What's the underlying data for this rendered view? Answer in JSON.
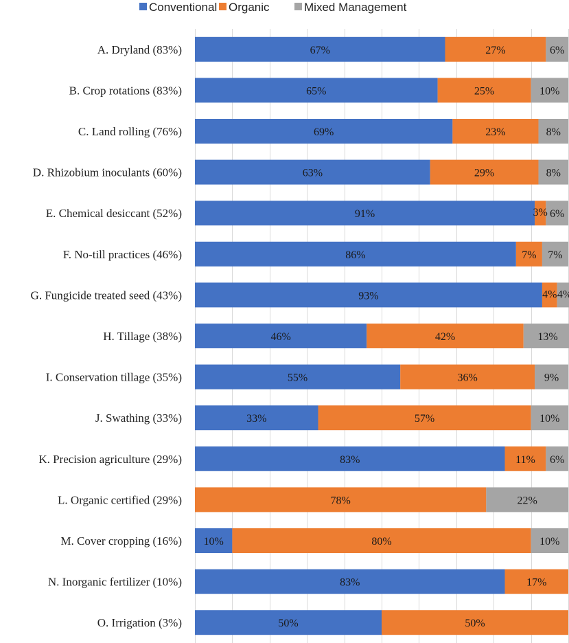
{
  "chart_data": {
    "type": "bar",
    "orientation": "horizontal",
    "stacked": "percent",
    "title": "",
    "xlabel": "",
    "ylabel": "",
    "xlim": [
      0,
      100
    ],
    "grid": true,
    "legend_position": "top",
    "categories": [
      "A. Dryland (83%)",
      "B. Crop rotations (83%)",
      "C. Land rolling (76%)",
      "D. Rhizobium inoculants (60%)",
      "E. Chemical desiccant (52%)",
      "F. No-till practices (46%)",
      "G. Fungicide treated seed (43%)",
      "H. Tillage (38%)",
      "I. Conservation tillage (35%)",
      "J. Swathing (33%)",
      "K. Precision agriculture (29%)",
      "L. Organic certified (29%)",
      "M. Cover cropping (16%)",
      "N. Inorganic fertilizer (10%)",
      "O. Irrigation (3%)"
    ],
    "series": [
      {
        "name": "Conventional",
        "color": "#4472C4",
        "values": [
          67,
          65,
          69,
          63,
          91,
          86,
          93,
          46,
          55,
          33,
          83,
          0,
          10,
          83,
          50
        ],
        "labels": [
          "67%",
          "65%",
          "69%",
          "63%",
          "91%",
          "86%",
          "93%",
          "46%",
          "55%",
          "33%",
          "83%",
          "",
          "10%",
          "83%",
          "50%"
        ]
      },
      {
        "name": "Organic",
        "color": "#ED7D31",
        "values": [
          27,
          25,
          23,
          29,
          3,
          7,
          4,
          42,
          36,
          57,
          11,
          78,
          80,
          17,
          50
        ],
        "labels": [
          "27%",
          "25%",
          "23%",
          "29%",
          "3%",
          "7%",
          "4%",
          "42%",
          "36%",
          "57%",
          "11%",
          "78%",
          "80%",
          "17%",
          "50%"
        ]
      },
      {
        "name": "Mixed Management",
        "color": "#A5A5A5",
        "values": [
          6,
          10,
          8,
          8,
          6,
          7,
          4,
          13,
          9,
          10,
          6,
          22,
          10,
          0,
          0
        ],
        "labels": [
          "6%",
          "10%",
          "8%",
          "8%",
          "6%",
          "7%",
          "4%",
          "13%",
          "9%",
          "10%",
          "6%",
          "22%",
          "10%",
          "",
          ""
        ]
      }
    ]
  }
}
